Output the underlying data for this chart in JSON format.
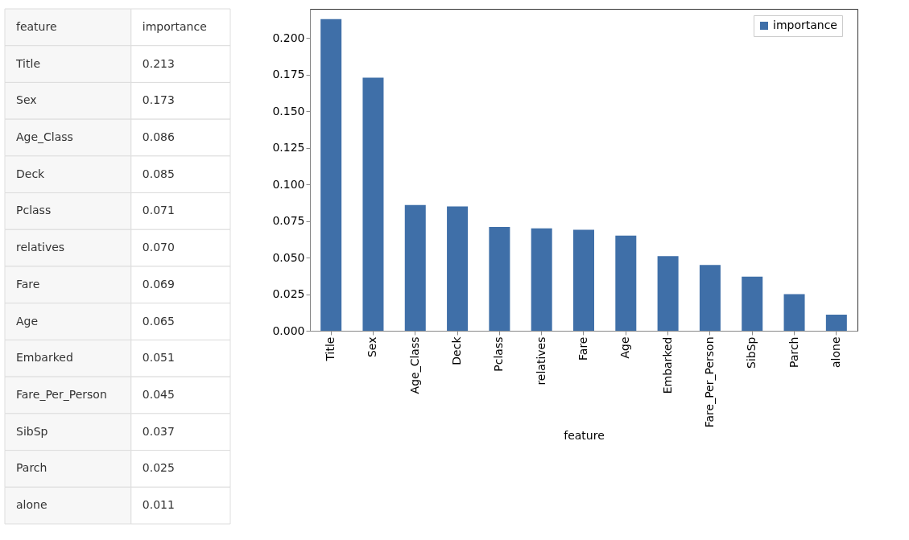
{
  "chart_data": [
    {
      "type": "other",
      "xlabel": "feature",
      "categories": [
        "Title",
        "Sex",
        "Age_Class",
        "Deck",
        "Pclass",
        "relatives",
        "Fare",
        "Age",
        "Embarked",
        "Fare_Per_Person",
        "SibSp",
        "Parch",
        "alone"
      ],
      "series": [
        {
          "name": "importance",
          "values": [
            0.213,
            0.173,
            0.086,
            0.085,
            0.071,
            0.07,
            0.069,
            0.065,
            0.051,
            0.045,
            0.037,
            0.025,
            0.011
          ],
          "value_labels": [
            "0.213",
            "0.173",
            "0.086",
            "0.085",
            "0.071",
            "0.070",
            "0.069",
            "0.065",
            "0.051",
            "0.045",
            "0.037",
            "0.025",
            "0.011"
          ]
        }
      ]
    },
    {
      "type": "bar",
      "xlabel": "feature",
      "categories": [
        "Title",
        "Sex",
        "Age_Class",
        "Deck",
        "Pclass",
        "relatives",
        "Fare",
        "Age",
        "Embarked",
        "Fare_Per_Person",
        "SibSp",
        "Parch",
        "alone"
      ],
      "series": [
        {
          "name": "importance",
          "color": "#3f6fa8",
          "values": [
            0.213,
            0.173,
            0.086,
            0.085,
            0.071,
            0.07,
            0.069,
            0.065,
            0.051,
            0.045,
            0.037,
            0.025,
            0.011
          ]
        }
      ],
      "ylim": [
        0,
        0.22
      ],
      "yticks": [
        {
          "value": 0,
          "label": "0.000"
        },
        {
          "value": 0.025,
          "label": "0.025"
        },
        {
          "value": 0.05,
          "label": "0.050"
        },
        {
          "value": 0.075,
          "label": "0.075"
        },
        {
          "value": 0.1,
          "label": "0.100"
        },
        {
          "value": 0.125,
          "label": "0.125"
        },
        {
          "value": 0.15,
          "label": "0.150"
        },
        {
          "value": 0.175,
          "label": "0.175"
        },
        {
          "value": 0.2,
          "label": "0.200"
        }
      ],
      "grid": false,
      "legend": "top right"
    }
  ]
}
